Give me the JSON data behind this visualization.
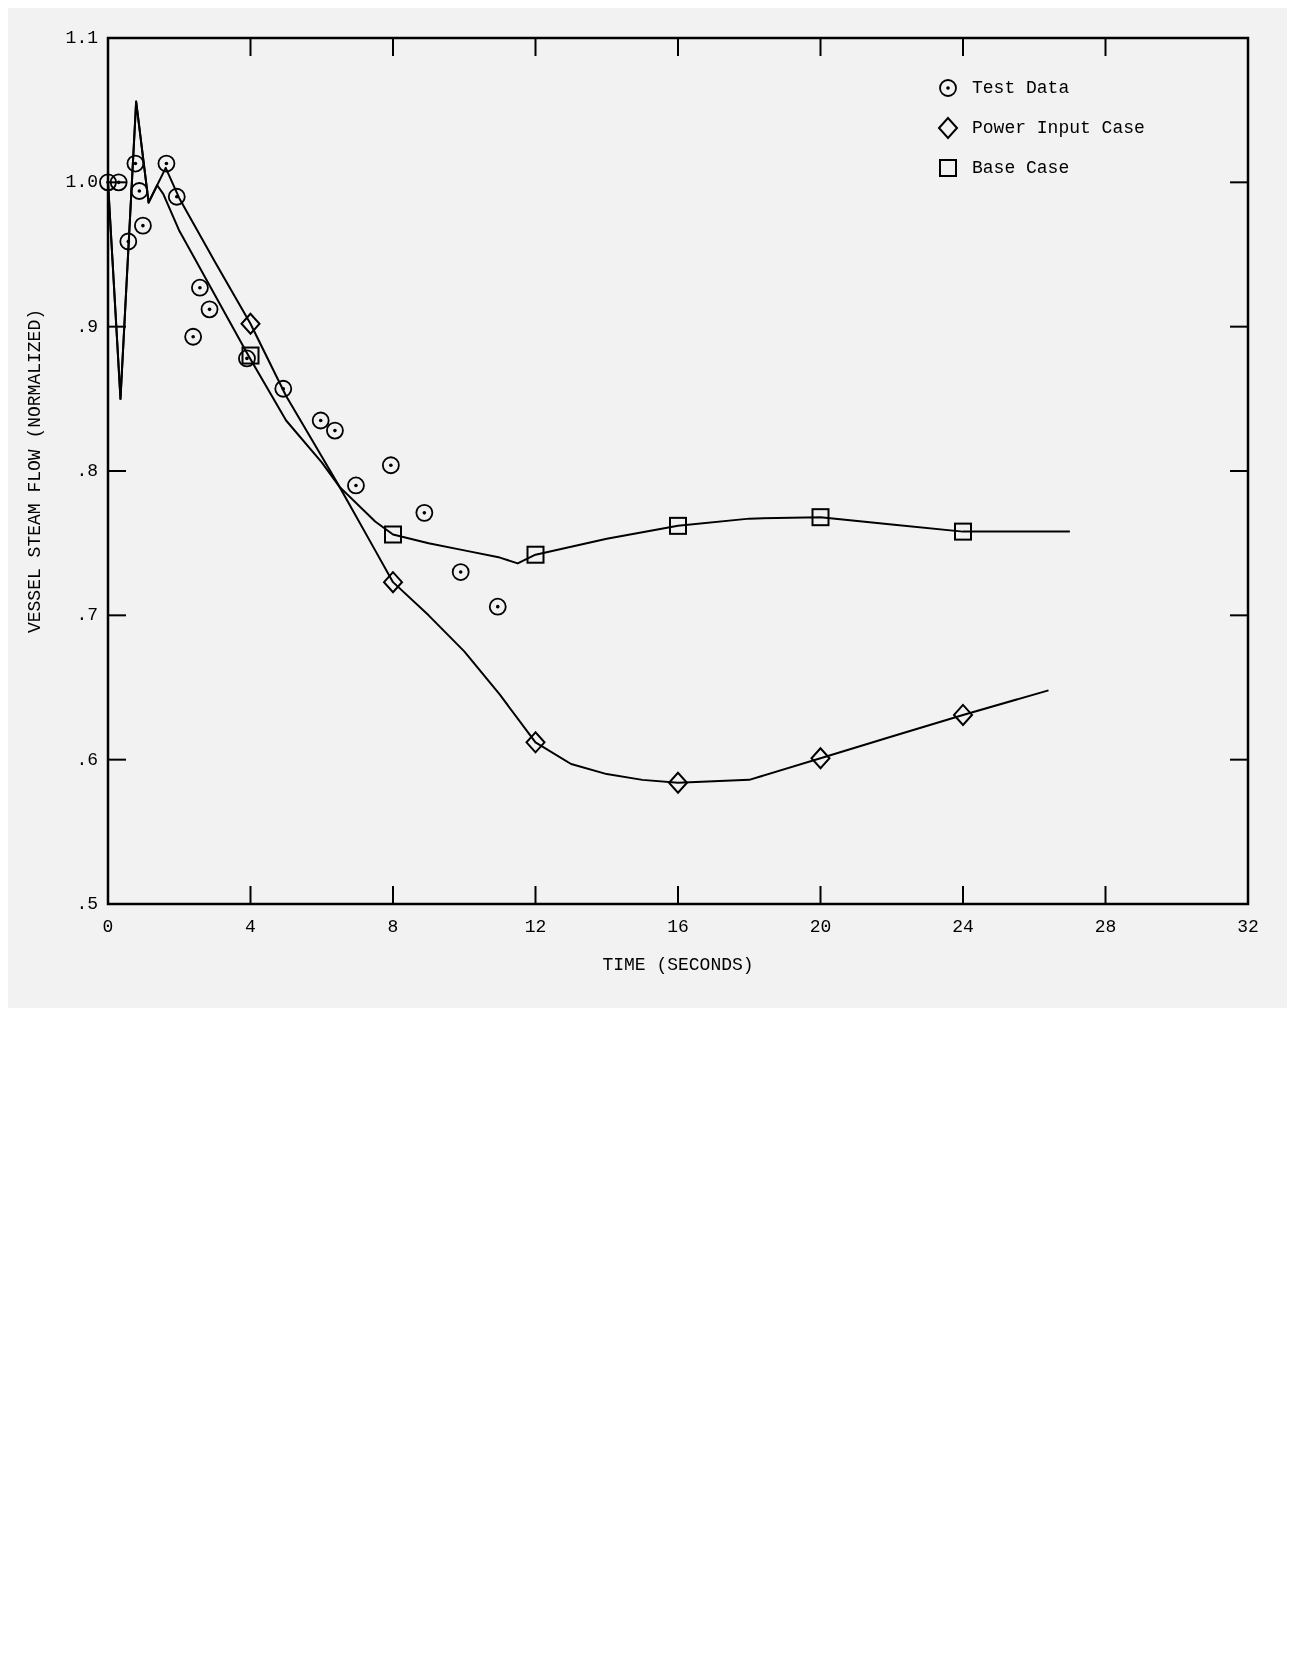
{
  "chart_data": {
    "type": "line",
    "xlabel": "TIME (SECONDS)",
    "ylabel": "VESSEL STEAM FLOW (NORMALIZED)",
    "xlim": [
      0,
      32
    ],
    "xticks": [
      0,
      4,
      8,
      12,
      16,
      20,
      24,
      28,
      32
    ],
    "ylim": [
      0.5,
      1.1
    ],
    "yticks": [
      {
        "value": 0.5,
        "label": ".5"
      },
      {
        "value": 0.6,
        "label": ".6"
      },
      {
        "value": 0.7,
        "label": ".7"
      },
      {
        "value": 0.8,
        "label": ".8"
      },
      {
        "value": 0.9,
        "label": ".9"
      },
      {
        "value": 1.0,
        "label": "1.0"
      },
      {
        "value": 1.1,
        "label": "1.1"
      }
    ],
    "grid": false,
    "legend": "top right",
    "series": [
      {
        "name": "Test Data",
        "type": "scatter",
        "marker": "circle",
        "color": "#000000",
        "x": [
          0,
          0.3,
          0.57,
          0.77,
          0.88,
          0.98,
          1.64,
          1.93,
          2.39,
          2.58,
          2.85,
          3.9,
          4.92,
          5.97,
          6.37,
          6.96,
          7.94,
          8.88,
          9.9,
          10.94
        ],
        "values": [
          1.0,
          1.0,
          0.959,
          1.013,
          0.994,
          0.97,
          1.013,
          0.99,
          0.893,
          0.927,
          0.912,
          0.878,
          0.857,
          0.835,
          0.828,
          0.79,
          0.804,
          0.771,
          0.73,
          0.706
        ]
      },
      {
        "name": "Power Input Case",
        "type": "scatter",
        "marker": "diamond",
        "color": "#000000",
        "x": [
          4,
          8,
          12,
          16,
          20,
          24
        ],
        "values": [
          0.902,
          0.723,
          0.612,
          0.584,
          0.601,
          0.631
        ]
      },
      {
        "name": "Base Case",
        "type": "scatter",
        "marker": "square",
        "color": "#000000",
        "x": [
          4,
          8,
          12,
          16,
          20,
          24
        ],
        "values": [
          0.88,
          0.756,
          0.742,
          0.762,
          0.768,
          0.758
        ]
      },
      {
        "type": "line",
        "marker": "none",
        "color": "#000000",
        "x": [
          0,
          0.35,
          0.79,
          1.14,
          1.62,
          2.0,
          3,
          4,
          5,
          6,
          6.5,
          7.5,
          8,
          9,
          10,
          11,
          12,
          13,
          14,
          15,
          16,
          18,
          20,
          22,
          24,
          26.4
        ],
        "values": [
          1.0,
          0.85,
          1.056,
          0.986,
          1.01,
          0.989,
          0.945,
          0.902,
          0.852,
          0.81,
          0.789,
          0.745,
          0.723,
          0.7,
          0.675,
          0.645,
          0.612,
          0.597,
          0.59,
          0.586,
          0.584,
          0.586,
          0.601,
          0.616,
          0.631,
          0.648
        ]
      },
      {
        "type": "line",
        "marker": "none",
        "color": "#000000",
        "x": [
          0,
          0.35,
          0.79,
          1.14,
          1.38,
          1.55,
          1.99,
          3,
          3.94,
          5,
          6,
          6.5,
          7.5,
          8,
          9,
          10,
          11,
          11.5,
          12,
          14,
          16,
          18,
          20,
          22,
          24,
          27
        ],
        "values": [
          1.0,
          0.85,
          1.056,
          0.986,
          0.998,
          0.992,
          0.967,
          0.922,
          0.88,
          0.835,
          0.806,
          0.789,
          0.765,
          0.756,
          0.75,
          0.745,
          0.74,
          0.736,
          0.742,
          0.753,
          0.762,
          0.767,
          0.768,
          0.763,
          0.758,
          0.758
        ]
      }
    ]
  }
}
